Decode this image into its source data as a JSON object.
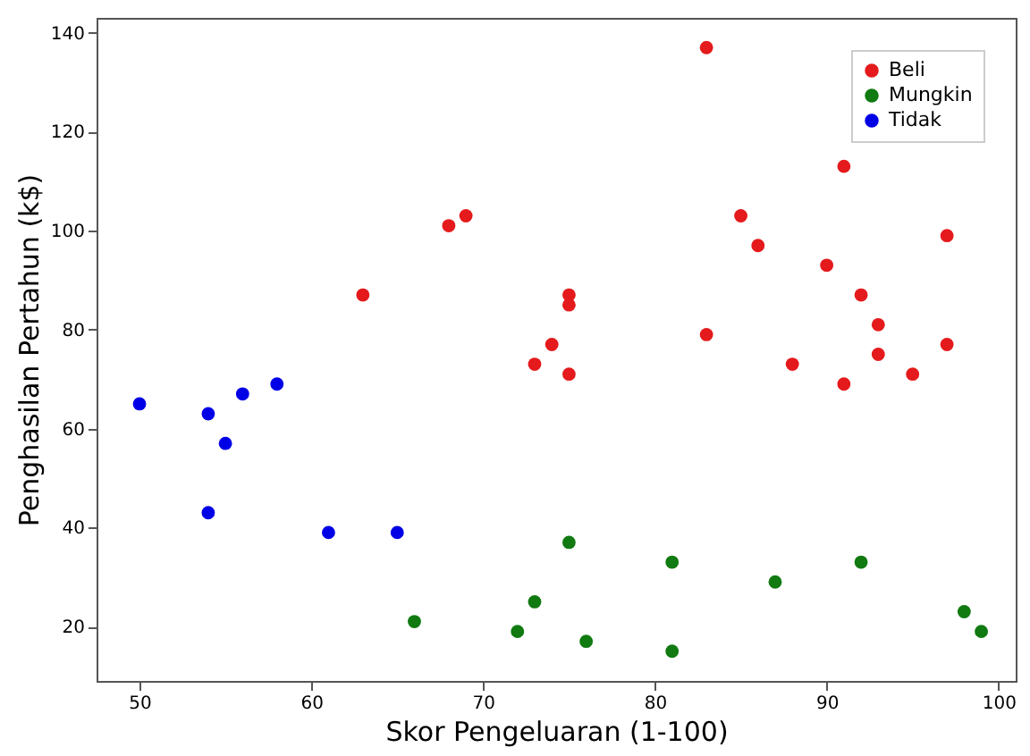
{
  "chart_data": {
    "type": "scatter",
    "xlabel": "Skor Pengeluaran (1-100)",
    "ylabel": "Penghasilan Pertahun (k$)",
    "xlim": [
      47.5,
      101
    ],
    "ylim": [
      9,
      143
    ],
    "xticks": [
      50,
      60,
      70,
      80,
      90,
      100
    ],
    "yticks": [
      20,
      40,
      60,
      80,
      100,
      120,
      140
    ],
    "grid": false,
    "legend": "top right",
    "marker": "circle",
    "series": [
      {
        "name": "Beli",
        "color": "#e41a1c",
        "x": [
          63,
          68,
          69,
          73,
          74,
          75,
          75,
          75,
          83,
          83,
          85,
          86,
          88,
          90,
          91,
          91,
          92,
          93,
          93,
          95,
          97,
          97
        ],
        "values": [
          87,
          101,
          103,
          73,
          77,
          87,
          85,
          71,
          137,
          79,
          103,
          97,
          73,
          93,
          113,
          69,
          87,
          81,
          75,
          71,
          99,
          77
        ]
      },
      {
        "name": "Mungkin",
        "color": "#117a11",
        "x": [
          66,
          72,
          73,
          75,
          76,
          81,
          81,
          87,
          92,
          98,
          99
        ],
        "values": [
          21,
          19,
          25,
          37,
          17,
          33,
          15,
          29,
          33,
          23,
          19
        ]
      },
      {
        "name": "Tidak",
        "color": "#0000e6",
        "x": [
          50,
          54,
          55,
          56,
          58,
          54,
          61,
          65
        ],
        "values": [
          65,
          63,
          57,
          67,
          69,
          43,
          39,
          39
        ]
      }
    ]
  }
}
